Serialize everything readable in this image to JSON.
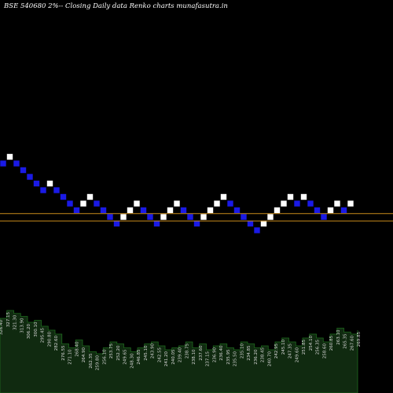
{
  "title": "BSE 540680  2%--  Closing Daily data  Renko  charts munafasutra.in",
  "chart_data": {
    "type": "renko",
    "box_size_percent": 2,
    "up_color": "#ffffff",
    "down_color": "#1a1ae6",
    "background": "#000000",
    "reference_line_color": "#c88a1a",
    "bricks": [
      {
        "dir": "down",
        "level": 0
      },
      {
        "dir": "up",
        "level": 1
      },
      {
        "dir": "down",
        "level": 0
      },
      {
        "dir": "down",
        "level": -1
      },
      {
        "dir": "down",
        "level": -2
      },
      {
        "dir": "down",
        "level": -3
      },
      {
        "dir": "down",
        "level": -4
      },
      {
        "dir": "up",
        "level": -3
      },
      {
        "dir": "down",
        "level": -4
      },
      {
        "dir": "down",
        "level": -5
      },
      {
        "dir": "down",
        "level": -6
      },
      {
        "dir": "down",
        "level": -7
      },
      {
        "dir": "up",
        "level": -6
      },
      {
        "dir": "up",
        "level": -5
      },
      {
        "dir": "down",
        "level": -6
      },
      {
        "dir": "down",
        "level": -7
      },
      {
        "dir": "down",
        "level": -8
      },
      {
        "dir": "down",
        "level": -9
      },
      {
        "dir": "up",
        "level": -8
      },
      {
        "dir": "up",
        "level": -7
      },
      {
        "dir": "up",
        "level": -6
      },
      {
        "dir": "down",
        "level": -7
      },
      {
        "dir": "down",
        "level": -8
      },
      {
        "dir": "down",
        "level": -9
      },
      {
        "dir": "up",
        "level": -8
      },
      {
        "dir": "up",
        "level": -7
      },
      {
        "dir": "up",
        "level": -6
      },
      {
        "dir": "down",
        "level": -7
      },
      {
        "dir": "down",
        "level": -8
      },
      {
        "dir": "down",
        "level": -9
      },
      {
        "dir": "up",
        "level": -8
      },
      {
        "dir": "up",
        "level": -7
      },
      {
        "dir": "up",
        "level": -6
      },
      {
        "dir": "up",
        "level": -5
      },
      {
        "dir": "down",
        "level": -6
      },
      {
        "dir": "down",
        "level": -7
      },
      {
        "dir": "down",
        "level": -8
      },
      {
        "dir": "down",
        "level": -9
      },
      {
        "dir": "down",
        "level": -10
      },
      {
        "dir": "up",
        "level": -9
      },
      {
        "dir": "up",
        "level": -8
      },
      {
        "dir": "up",
        "level": -7
      },
      {
        "dir": "up",
        "level": -6
      },
      {
        "dir": "up",
        "level": -5
      },
      {
        "dir": "down",
        "level": -6
      },
      {
        "dir": "up",
        "level": -5
      },
      {
        "dir": "down",
        "level": -6
      },
      {
        "dir": "down",
        "level": -7
      },
      {
        "dir": "down",
        "level": -8
      },
      {
        "dir": "up",
        "level": -7
      },
      {
        "dir": "up",
        "level": -6
      },
      {
        "dir": "down",
        "level": -7
      },
      {
        "dir": "up",
        "level": -6
      }
    ],
    "reference_lines": [
      -7.5,
      -8.6
    ],
    "volume": {
      "fill": "#102a10",
      "stroke": "#1e6a1e",
      "label_color": "#d8d8d8",
      "values": [
        380,
        420,
        405,
        390,
        360,
        370,
        340,
        320,
        300,
        250,
        230,
        270,
        240,
        210,
        200,
        230,
        260,
        250,
        230,
        210,
        230,
        250,
        260,
        240,
        220,
        230,
        240,
        260,
        230,
        250,
        220,
        240,
        250,
        230,
        220,
        260,
        250,
        230,
        240,
        220,
        260,
        280,
        260,
        240,
        280,
        300,
        280,
        260,
        300,
        330,
        310,
        300,
        320
      ],
      "labels": [
        "326.40",
        "327.15",
        "321.30",
        "313.90",
        "306.20",
        "300.10",
        "295.45",
        "290.80",
        "282.60",
        "276.55",
        "271.10",
        "268.40",
        "264.90",
        "262.35",
        "259.80",
        "256.10",
        "253.75",
        "252.20",
        "249.65",
        "248.30",
        "246.85",
        "245.10",
        "243.90",
        "242.55",
        "241.20",
        "240.05",
        "239.40",
        "238.75",
        "238.10",
        "237.60",
        "237.15",
        "236.90",
        "236.40",
        "235.95",
        "235.50",
        "235.10",
        "234.85",
        "236.20",
        "238.45",
        "240.70",
        "242.95",
        "245.10",
        "247.35",
        "249.60",
        "251.85",
        "254.10",
        "256.35",
        "258.60",
        "260.85",
        "263.10",
        "265.35",
        "267.60",
        "269.85"
      ]
    }
  }
}
